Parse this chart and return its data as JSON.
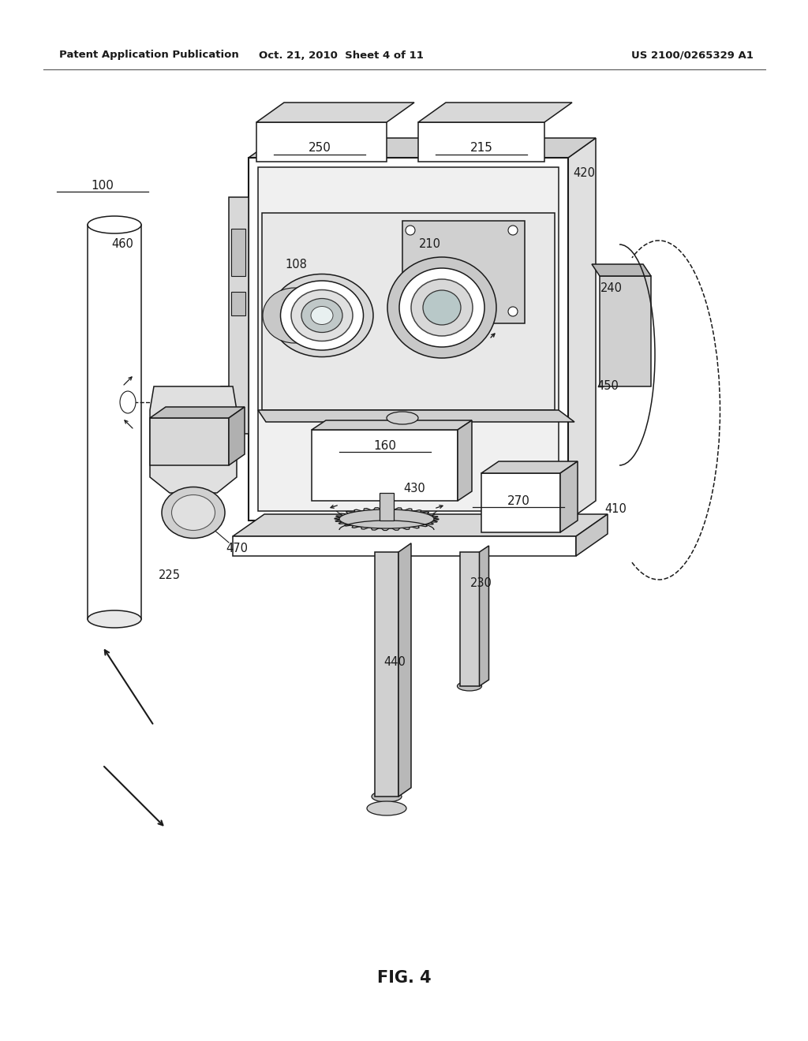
{
  "title": "FIG. 4",
  "header_left": "Patent Application Publication",
  "header_center": "Oct. 21, 2010  Sheet 4 of 11",
  "header_right": "US 2100/0265329 A1",
  "bg_color": "#ffffff",
  "lw": 1.1,
  "black": "#1a1a1a"
}
